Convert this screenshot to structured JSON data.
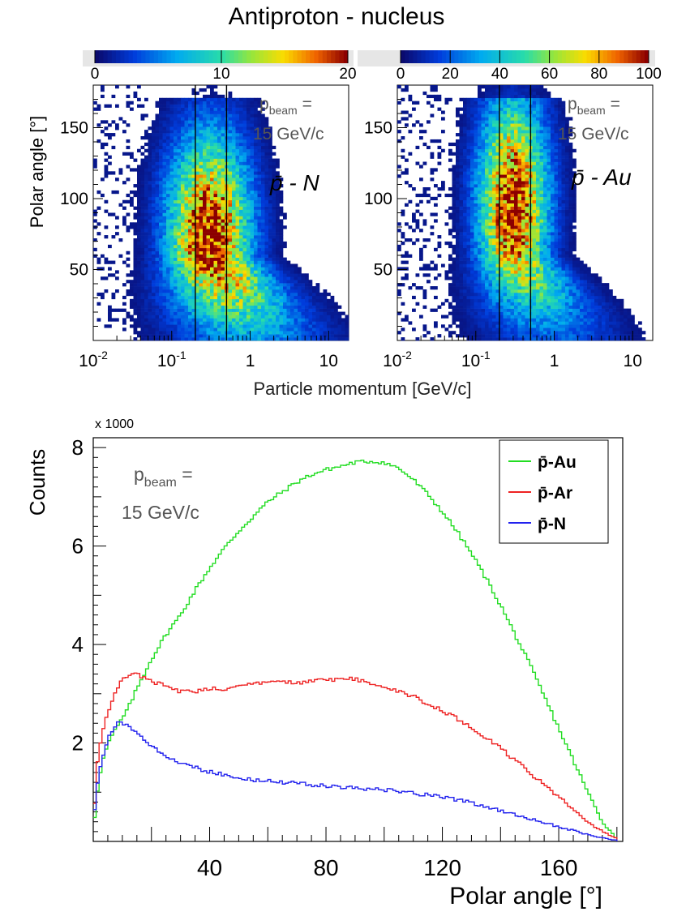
{
  "title": "Antiproton - nucleus",
  "chart_data": [
    {
      "type": "heatmap",
      "panel": "p̄-N",
      "reaction_label": "p̄ - N",
      "beam_label_main": "p",
      "beam_label_sub": "beam",
      "beam_label_eq": "=",
      "beam_value": "15 GeV/c",
      "xlabel": "Particle momentum [GeV/c]",
      "ylabel": "Polar angle  [°]",
      "x_scale": "log",
      "xlim": [
        0.01,
        18
      ],
      "ylim": [
        0,
        180
      ],
      "x_ticks": [
        {
          "v": 0.01,
          "base": "10",
          "exp": "-2"
        },
        {
          "v": 0.1,
          "base": "10",
          "exp": "-1"
        },
        {
          "v": 1,
          "base": "1",
          "exp": ""
        },
        {
          "v": 10,
          "base": "10",
          "exp": ""
        }
      ],
      "y_ticks": [
        50,
        100,
        150
      ],
      "colorbar": {
        "min": 0,
        "max": 20,
        "ticks": [
          0,
          10,
          20
        ]
      },
      "vertical_cuts_gev": [
        0.2,
        0.5
      ],
      "density_peak": {
        "p_gev": 0.3,
        "angle_deg": 75
      }
    },
    {
      "type": "heatmap",
      "panel": "p̄-Au",
      "reaction_label": "p̄ - Au",
      "beam_label_main": "p",
      "beam_label_sub": "beam",
      "beam_label_eq": "=",
      "beam_value": "15 GeV/c",
      "xlabel": "Particle momentum [GeV/c]",
      "ylabel": "",
      "x_scale": "log",
      "xlim": [
        0.01,
        18
      ],
      "ylim": [
        0,
        180
      ],
      "x_ticks": [
        {
          "v": 0.01,
          "base": "10",
          "exp": "-2"
        },
        {
          "v": 0.1,
          "base": "10",
          "exp": "-1"
        },
        {
          "v": 1,
          "base": "1",
          "exp": ""
        },
        {
          "v": 10,
          "base": "10",
          "exp": ""
        }
      ],
      "y_ticks": [
        50,
        100,
        150
      ],
      "colorbar": {
        "min": 0,
        "max": 100,
        "ticks": [
          0,
          20,
          40,
          60,
          80,
          100
        ]
      },
      "vertical_cuts_gev": [
        0.2,
        0.5
      ],
      "density_peak": {
        "p_gev": 0.3,
        "angle_deg": 95
      }
    },
    {
      "type": "line",
      "xlabel": "Polar angle [°]",
      "ylabel": "Counts",
      "y_multiplier_label": "x 1000",
      "xlim": [
        0,
        182
      ],
      "ylim": [
        0,
        8.2
      ],
      "x_ticks": [
        40,
        80,
        120,
        160
      ],
      "y_ticks": [
        2,
        4,
        6,
        8
      ],
      "beam_label_main": "p",
      "beam_label_sub": "beam",
      "beam_label_eq": "=",
      "beam_value": "15 GeV/c",
      "legend_position": "top-right",
      "x": [
        0,
        1,
        2,
        4,
        6,
        8,
        10,
        12,
        15,
        20,
        25,
        30,
        35,
        40,
        45,
        50,
        55,
        60,
        65,
        70,
        75,
        80,
        85,
        90,
        95,
        100,
        105,
        110,
        115,
        120,
        125,
        130,
        135,
        140,
        145,
        150,
        155,
        160,
        165,
        170,
        175,
        180,
        182
      ],
      "series": [
        {
          "name": "p̄-Au",
          "color": "#22dd22",
          "values": [
            0.2,
            0.8,
            1.3,
            1.8,
            2.1,
            2.3,
            2.5,
            2.7,
            3.1,
            3.7,
            4.2,
            4.6,
            5.1,
            5.55,
            5.95,
            6.3,
            6.6,
            6.9,
            7.1,
            7.3,
            7.45,
            7.55,
            7.62,
            7.7,
            7.72,
            7.7,
            7.58,
            7.35,
            7.05,
            6.7,
            6.3,
            5.85,
            5.35,
            4.8,
            4.2,
            3.6,
            2.95,
            2.3,
            1.65,
            1.0,
            0.4,
            0.05,
            0.0
          ]
        },
        {
          "name": "p̄-Ar",
          "color": "#ee2222",
          "values": [
            0.3,
            1.3,
            1.9,
            2.4,
            2.8,
            3.1,
            3.3,
            3.35,
            3.4,
            3.25,
            3.15,
            3.05,
            3.05,
            3.1,
            3.1,
            3.15,
            3.2,
            3.25,
            3.25,
            3.2,
            3.25,
            3.28,
            3.3,
            3.3,
            3.2,
            3.15,
            3.05,
            2.95,
            2.8,
            2.65,
            2.5,
            2.3,
            2.1,
            1.9,
            1.65,
            1.4,
            1.15,
            0.9,
            0.65,
            0.4,
            0.2,
            0.05,
            0.0
          ]
        },
        {
          "name": "p̄-N",
          "color": "#2222ee",
          "values": [
            0.35,
            1.0,
            1.4,
            1.9,
            2.2,
            2.38,
            2.42,
            2.35,
            2.2,
            1.95,
            1.75,
            1.6,
            1.5,
            1.42,
            1.35,
            1.3,
            1.25,
            1.22,
            1.2,
            1.18,
            1.15,
            1.12,
            1.1,
            1.08,
            1.06,
            1.05,
            1.02,
            0.98,
            0.95,
            0.9,
            0.85,
            0.78,
            0.7,
            0.62,
            0.55,
            0.47,
            0.38,
            0.3,
            0.22,
            0.14,
            0.07,
            0.02,
            0.0
          ]
        }
      ]
    }
  ]
}
